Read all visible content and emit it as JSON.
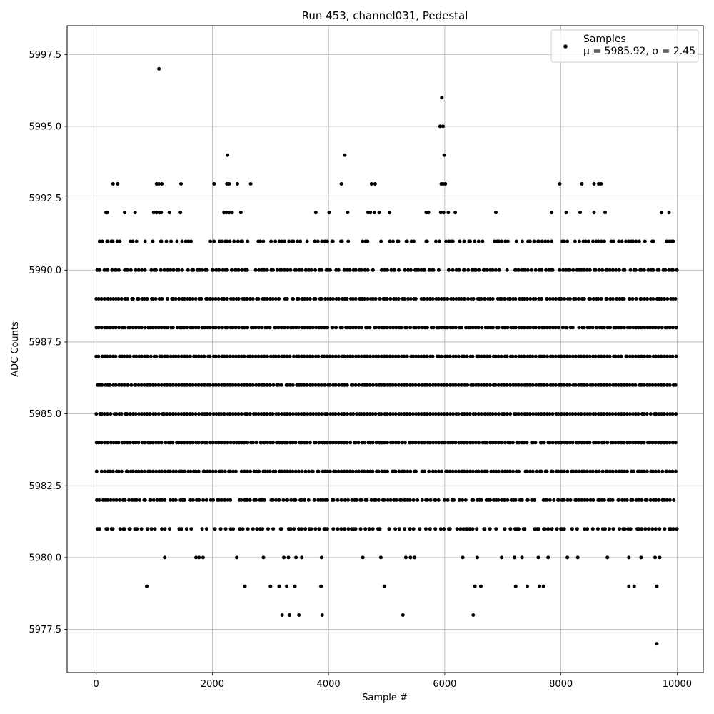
{
  "chart_data": {
    "type": "scatter",
    "title": "Run 453, channel031, Pedestal",
    "xlabel": "Sample #",
    "ylabel": "ADC Counts",
    "xlim": [
      -500,
      10450
    ],
    "ylim": [
      5976.0,
      5998.5
    ],
    "xticks": [
      0,
      2000,
      4000,
      6000,
      8000,
      10000
    ],
    "yticks": [
      5977.5,
      5980.0,
      5982.5,
      5985.0,
      5987.5,
      5990.0,
      5992.5,
      5995.0,
      5997.5
    ],
    "xtick_labels": [
      "0",
      "2000",
      "4000",
      "6000",
      "8000",
      "10000"
    ],
    "ytick_labels": [
      "5977.5",
      "5980.0",
      "5982.5",
      "5985.0",
      "5987.5",
      "5990.0",
      "5992.5",
      "5995.0",
      "5997.5"
    ],
    "grid": true,
    "marker_color": "#000000",
    "legend": {
      "placement": "upper right",
      "series_label": "Samples",
      "stats_label": "μ = 5985.92, σ = 2.45"
    },
    "series": [
      {
        "name": "Samples",
        "sample_count": 10000,
        "x_range": [
          0,
          9999
        ],
        "mean": 5985.92,
        "sigma": 2.45,
        "points": [
          [
            1080,
            5997
          ],
          [
            5950,
            5996
          ],
          [
            5920,
            5995
          ],
          [
            5970,
            5995
          ],
          [
            2260,
            5994
          ],
          [
            4280,
            5994
          ],
          [
            5990,
            5994
          ],
          [
            290,
            5993
          ],
          [
            370,
            5993
          ],
          [
            1040,
            5993
          ],
          [
            1080,
            5993
          ],
          [
            1130,
            5993
          ],
          [
            1460,
            5993
          ],
          [
            2030,
            5993
          ],
          [
            2250,
            5993
          ],
          [
            2290,
            5993
          ],
          [
            2430,
            5993
          ],
          [
            2660,
            5993
          ],
          [
            4220,
            5993
          ],
          [
            4740,
            5993
          ],
          [
            4800,
            5993
          ],
          [
            5940,
            5993
          ],
          [
            5970,
            5993
          ],
          [
            6010,
            5993
          ],
          [
            7980,
            5993
          ],
          [
            8360,
            5993
          ],
          [
            8570,
            5993
          ],
          [
            8650,
            5993
          ],
          [
            8690,
            5993
          ],
          [
            170,
            5992
          ],
          [
            190,
            5992
          ],
          [
            490,
            5992
          ],
          [
            670,
            5992
          ],
          [
            990,
            5992
          ],
          [
            1040,
            5992
          ],
          [
            1090,
            5992
          ],
          [
            1120,
            5992
          ],
          [
            1260,
            5992
          ],
          [
            1450,
            5992
          ],
          [
            2200,
            5992
          ],
          [
            2240,
            5992
          ],
          [
            2290,
            5992
          ],
          [
            2340,
            5992
          ],
          [
            2490,
            5992
          ],
          [
            3780,
            5992
          ],
          [
            4010,
            5992
          ],
          [
            4330,
            5992
          ],
          [
            4680,
            5992
          ],
          [
            4720,
            5992
          ],
          [
            4790,
            5992
          ],
          [
            4870,
            5992
          ],
          [
            5050,
            5992
          ],
          [
            5680,
            5992
          ],
          [
            5720,
            5992
          ],
          [
            5930,
            5992
          ],
          [
            5980,
            5992
          ],
          [
            6060,
            5992
          ],
          [
            6180,
            5992
          ],
          [
            6880,
            5992
          ],
          [
            7840,
            5992
          ],
          [
            8090,
            5992
          ],
          [
            8330,
            5992
          ],
          [
            8570,
            5992
          ],
          [
            8760,
            5992
          ],
          [
            9730,
            5992
          ],
          [
            9860,
            5992
          ],
          [
            1180,
            5980
          ],
          [
            1720,
            5980
          ],
          [
            1770,
            5980
          ],
          [
            1840,
            5980
          ],
          [
            2420,
            5980
          ],
          [
            2880,
            5980
          ],
          [
            3230,
            5980
          ],
          [
            3310,
            5980
          ],
          [
            3440,
            5980
          ],
          [
            3540,
            5980
          ],
          [
            3880,
            5980
          ],
          [
            4590,
            5980
          ],
          [
            4900,
            5980
          ],
          [
            5330,
            5980
          ],
          [
            5410,
            5980
          ],
          [
            5480,
            5980
          ],
          [
            6310,
            5980
          ],
          [
            6560,
            5980
          ],
          [
            6980,
            5980
          ],
          [
            7200,
            5980
          ],
          [
            7330,
            5980
          ],
          [
            7610,
            5980
          ],
          [
            7780,
            5980
          ],
          [
            8110,
            5980
          ],
          [
            8290,
            5980
          ],
          [
            8800,
            5980
          ],
          [
            9170,
            5980
          ],
          [
            9380,
            5980
          ],
          [
            9620,
            5980
          ],
          [
            9700,
            5980
          ],
          [
            870,
            5979
          ],
          [
            2560,
            5979
          ],
          [
            3000,
            5979
          ],
          [
            3150,
            5979
          ],
          [
            3280,
            5979
          ],
          [
            3420,
            5979
          ],
          [
            3870,
            5979
          ],
          [
            4960,
            5979
          ],
          [
            6520,
            5979
          ],
          [
            6620,
            5979
          ],
          [
            7220,
            5979
          ],
          [
            7420,
            5979
          ],
          [
            7630,
            5979
          ],
          [
            7700,
            5979
          ],
          [
            9170,
            5979
          ],
          [
            9260,
            5979
          ],
          [
            9650,
            5979
          ],
          [
            3200,
            5978
          ],
          [
            3330,
            5978
          ],
          [
            3490,
            5978
          ],
          [
            3890,
            5978
          ],
          [
            5280,
            5978
          ],
          [
            6490,
            5978
          ],
          [
            9650,
            5977
          ]
        ]
      }
    ]
  }
}
